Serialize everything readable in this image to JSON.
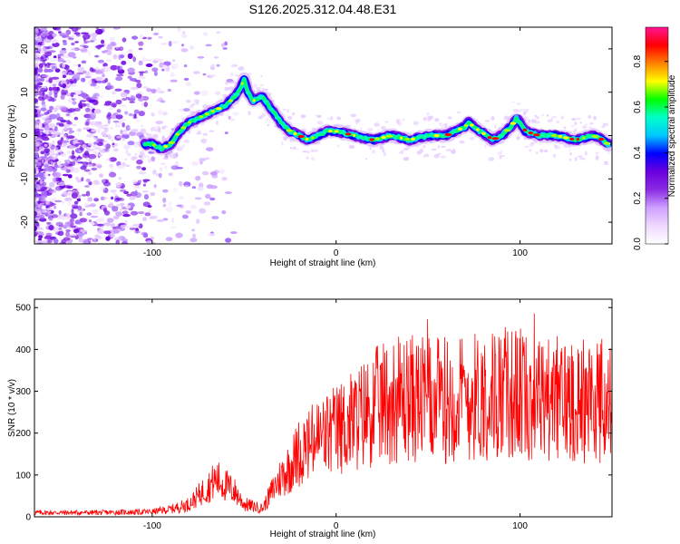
{
  "title": "S126.2025.312.04.48.E31",
  "chart_data": [
    {
      "type": "heatmap",
      "title": "S126.2025.312.04.48.E31",
      "xlabel": "Height of straight line (km)",
      "ylabel": "Frequency (Hz)",
      "xlim": [
        -164,
        150
      ],
      "ylim": [
        -25,
        25
      ],
      "x_ticks": [
        -100,
        0,
        100
      ],
      "x_tick_labels": [
        "-100",
        "0",
        "100"
      ],
      "y_ticks": [
        -20,
        -10,
        0,
        10,
        20
      ],
      "y_tick_labels": [
        "-20",
        "-10",
        "0",
        "10",
        "20"
      ],
      "colorbar": {
        "label": "Normalized spectral amplitude",
        "range": [
          0,
          0.95
        ],
        "ticks": [
          0,
          0.2,
          0.4,
          0.6,
          0.8
        ],
        "tick_labels": [
          "0.0",
          "0.2",
          "0.4",
          "0.6",
          "0.8"
        ],
        "colors": [
          "#ffffff",
          "#f0d8ff",
          "#cfa0ff",
          "#8a2be2",
          "#6a00e0",
          "#0000ff",
          "#00c8ff",
          "#00ffc8",
          "#00ff00",
          "#ffff00",
          "#ff8000",
          "#ff0000",
          "#ff1493"
        ]
      },
      "ridge": {
        "x": [
          -104,
          -100,
          -95,
          -90,
          -85,
          -80,
          -75,
          -70,
          -65,
          -60,
          -55,
          -52,
          -50,
          -48,
          -45,
          -40,
          -35,
          -30,
          -25,
          -20,
          -15,
          -10,
          -5,
          0,
          10,
          20,
          30,
          40,
          50,
          60,
          70,
          72,
          75,
          78,
          82,
          85,
          90,
          95,
          98,
          100,
          103,
          110,
          120,
          130,
          140,
          145,
          148
        ],
        "y": [
          -2,
          -2,
          -3,
          -2,
          1,
          3,
          4,
          5,
          6,
          7,
          9,
          11,
          13,
          10,
          8,
          9,
          6,
          3,
          1,
          0,
          -1,
          0,
          1,
          1,
          0,
          -1,
          0,
          -1,
          0,
          0,
          2,
          3,
          2,
          1,
          0,
          -1,
          0,
          2,
          4,
          3,
          1,
          0,
          0,
          -1,
          0,
          -1,
          -2
        ]
      }
    },
    {
      "type": "line",
      "xlabel": "Height of straight line (km)",
      "ylabel": "SNR (10 * v/v)",
      "xlim": [
        -164,
        150
      ],
      "ylim": [
        0,
        520
      ],
      "x_ticks": [
        -100,
        0,
        100
      ],
      "x_tick_labels": [
        "-100",
        "0",
        "100"
      ],
      "y_ticks": [
        0,
        100,
        200,
        300,
        400,
        500
      ],
      "y_tick_labels": [
        "0",
        "100",
        "200",
        "300",
        "400",
        "500"
      ],
      "color": "#ff0000",
      "envelope": {
        "x": [
          -164,
          -130,
          -100,
          -90,
          -80,
          -70,
          -65,
          -60,
          -55,
          -50,
          -45,
          -40,
          -35,
          -30,
          -25,
          -20,
          -10,
          0,
          10,
          20,
          30,
          40,
          50,
          60,
          70,
          80,
          90,
          100,
          110,
          120,
          130,
          140,
          150
        ],
        "y": [
          10,
          10,
          12,
          18,
          30,
          70,
          90,
          75,
          60,
          30,
          25,
          20,
          60,
          95,
          120,
          155,
          185,
          205,
          230,
          260,
          280,
          285,
          275,
          280,
          285,
          290,
          295,
          295,
          285,
          280,
          285,
          280,
          270
        ]
      }
    }
  ]
}
